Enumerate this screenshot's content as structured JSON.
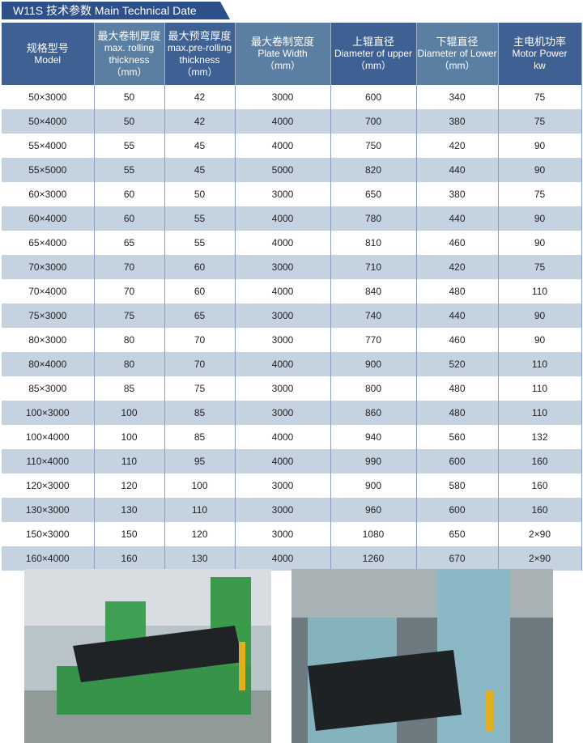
{
  "title": "W11S  技术参数  Main Technical Date",
  "headers": [
    {
      "cn": "规格型号",
      "en": [
        "Model"
      ]
    },
    {
      "cn": "最大卷制厚度",
      "en": [
        "max. rolling",
        "thickness",
        "（mm）"
      ]
    },
    {
      "cn": "最大预弯厚度",
      "en": [
        "max.pre-rolling",
        "thickness",
        "（mm）"
      ]
    },
    {
      "cn": "最大卷制宽度",
      "en": [
        "Plate Width",
        "（mm）"
      ]
    },
    {
      "cn": "上辊直径",
      "en": [
        "Diameter of upper",
        "（mm）"
      ]
    },
    {
      "cn": "下辊直径",
      "en": [
        "Diameter of Lower",
        "（mm）"
      ]
    },
    {
      "cn": "主电机功率",
      "en": [
        "Motor  Power",
        "kw"
      ]
    }
  ],
  "rows": [
    [
      "50×3000",
      "50",
      "42",
      "3000",
      "600",
      "340",
      "75"
    ],
    [
      "50×4000",
      "50",
      "42",
      "4000",
      "700",
      "380",
      "75"
    ],
    [
      "55×4000",
      "55",
      "45",
      "4000",
      "750",
      "420",
      "90"
    ],
    [
      "55×5000",
      "55",
      "45",
      "5000",
      "820",
      "440",
      "90"
    ],
    [
      "60×3000",
      "60",
      "50",
      "3000",
      "650",
      "380",
      "75"
    ],
    [
      "60×4000",
      "60",
      "55",
      "4000",
      "780",
      "440",
      "90"
    ],
    [
      "65×4000",
      "65",
      "55",
      "4000",
      "810",
      "460",
      "90"
    ],
    [
      "70×3000",
      "70",
      "60",
      "3000",
      "710",
      "420",
      "75"
    ],
    [
      "70×4000",
      "70",
      "60",
      "4000",
      "840",
      "480",
      "110"
    ],
    [
      "75×3000",
      "75",
      "65",
      "3000",
      "740",
      "440",
      "90"
    ],
    [
      "80×3000",
      "80",
      "70",
      "3000",
      "770",
      "460",
      "90"
    ],
    [
      "80×4000",
      "80",
      "70",
      "4000",
      "900",
      "520",
      "110"
    ],
    [
      "85×3000",
      "85",
      "75",
      "3000",
      "800",
      "480",
      "110"
    ],
    [
      "100×3000",
      "100",
      "85",
      "3000",
      "860",
      "480",
      "110"
    ],
    [
      "100×4000",
      "100",
      "85",
      "4000",
      "940",
      "560",
      "132"
    ],
    [
      "110×4000",
      "110",
      "95",
      "4000",
      "990",
      "600",
      "160"
    ],
    [
      "120×3000",
      "120",
      "100",
      "3000",
      "900",
      "580",
      "160"
    ],
    [
      "130×3000",
      "130",
      "110",
      "3000",
      "960",
      "600",
      "160"
    ],
    [
      "150×3000",
      "150",
      "120",
      "3000",
      "1080",
      "650",
      "2×90"
    ],
    [
      "160×4000",
      "160",
      "130",
      "4000",
      "1260",
      "670",
      "2×90"
    ]
  ],
  "colors": {
    "header_dark": "#3f6092",
    "header_light": "#5a7fa3",
    "row_alt": "#c5d2df",
    "banner": "#2d4f8a"
  }
}
